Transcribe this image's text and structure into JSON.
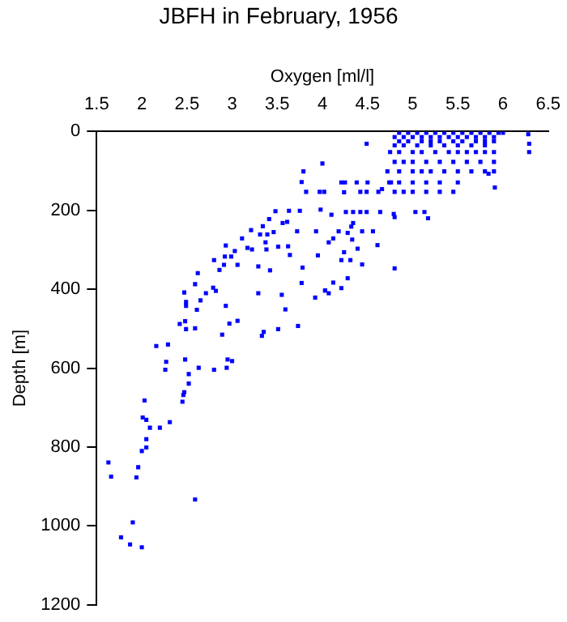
{
  "chart_data": {
    "type": "scatter",
    "title": "JBFH in February, 1956",
    "xlabel": "Oxygen [ml/l]",
    "ylabel": "Depth [m]",
    "x": [
      1.63,
      1.66,
      1.77,
      1.9,
      1.87,
      2.0,
      2.59,
      1.96,
      1.94,
      2.0,
      2.05,
      2.05,
      2.09,
      2.2,
      2.01,
      2.05,
      2.31,
      2.03,
      2.45,
      2.46,
      2.47,
      2.52,
      2.52,
      2.63,
      2.8,
      2.94,
      2.95,
      3.0,
      2.48,
      2.26,
      2.27,
      2.16,
      2.29,
      2.42,
      2.48,
      2.49,
      2.59,
      2.89,
      2.97,
      3.06,
      3.33,
      3.35,
      3.51,
      3.73,
      2.61,
      2.49,
      2.49,
      2.47,
      2.65,
      2.71,
      2.79,
      2.82,
      2.59,
      2.62,
      2.93,
      3.29,
      3.55,
      3.59,
      3.77,
      4.03,
      3.92,
      2.8,
      2.93,
      2.92,
      2.91,
      2.86,
      2.99,
      3.03,
      3.06,
      3.11,
      3.17,
      3.21,
      3.22,
      3.29,
      3.31,
      3.34,
      3.37,
      3.39,
      3.41,
      3.38,
      3.42,
      3.48,
      3.46,
      3.51,
      3.56,
      3.61,
      3.62,
      3.63,
      3.64,
      3.72,
      3.75,
      3.78,
      3.77,
      3.79,
      3.82,
      4.0,
      3.97,
      4.02,
      3.98,
      3.93,
      3.95,
      4.49,
      4.21,
      4.25,
      4.38,
      4.5,
      4.24,
      4.42,
      4.49,
      4.62,
      4.66,
      4.76,
      4.1,
      4.26,
      4.34,
      4.42,
      4.49,
      4.64,
      4.79,
      4.8,
      5.03,
      5.13,
      5.17,
      4.18,
      4.28,
      4.44,
      4.56,
      4.34,
      4.32,
      4.33,
      4.12,
      4.07,
      4.39,
      4.24,
      4.31,
      4.21,
      4.44,
      4.61,
      4.28,
      4.12,
      4.21,
      4.03,
      4.07,
      4.8,
      5.91,
      5.84,
      6.29,
      6.29,
      6.28,
      4.85,
      4.95,
      5.05,
      5.15,
      5.25,
      5.35,
      5.45,
      5.55,
      5.65,
      5.75,
      5.85,
      5.95,
      6.0,
      4.8,
      4.9,
      5.0,
      5.1,
      5.2,
      5.3,
      5.4,
      5.5,
      5.6,
      5.7,
      5.8,
      5.9,
      4.85,
      4.95,
      5.1,
      5.2,
      5.3,
      5.45,
      5.55,
      5.7,
      5.8,
      5.9,
      4.8,
      4.9,
      5.05,
      5.2,
      5.35,
      5.5,
      5.65,
      5.8,
      4.75,
      4.85,
      5.0,
      5.1,
      5.25,
      5.4,
      5.5,
      5.6,
      5.7,
      5.8,
      5.9,
      4.8,
      4.9,
      5.0,
      5.15,
      5.3,
      5.45,
      5.6,
      5.75,
      5.9,
      4.72,
      4.85,
      5.0,
      5.1,
      5.2,
      5.35,
      5.5,
      5.65,
      5.8,
      5.9,
      4.74,
      4.85,
      5.0,
      5.15,
      5.3,
      5.5,
      4.8,
      4.9,
      5.0,
      5.15,
      5.3,
      5.45
    ],
    "values": [
      839,
      875,
      1029,
      991,
      1047,
      1054,
      933,
      851,
      877,
      810,
      801,
      780,
      751,
      751,
      725,
      731,
      737,
      682,
      685,
      668,
      661,
      639,
      615,
      599,
      604,
      599,
      578,
      582,
      578,
      604,
      584,
      544,
      540,
      488,
      481,
      501,
      499,
      515,
      487,
      480,
      518,
      508,
      501,
      493,
      452,
      432,
      442,
      408,
      428,
      410,
      396,
      404,
      387,
      359,
      442,
      410,
      414,
      451,
      384,
      403,
      421,
      326,
      289,
      317,
      338,
      351,
      317,
      303,
      338,
      271,
      295,
      250,
      299,
      342,
      261,
      240,
      281,
      261,
      222,
      299,
      352,
      202,
      255,
      292,
      232,
      229,
      291,
      201,
      313,
      253,
      201,
      345,
      128,
      101,
      153,
      81,
      153,
      153,
      198,
      253,
      314,
      31,
      129,
      129,
      129,
      129,
      154,
      153,
      153,
      153,
      146,
      129,
      211,
      204,
      204,
      204,
      204,
      204,
      209,
      217,
      204,
      204,
      220,
      253,
      257,
      253,
      253,
      232,
      241,
      274,
      271,
      281,
      297,
      306,
      326,
      326,
      337,
      288,
      372,
      383,
      397,
      403,
      410,
      347,
      142,
      107,
      52,
      31,
      7,
      3,
      3,
      3,
      3,
      3,
      3,
      3,
      3,
      3,
      3,
      3,
      3,
      3,
      14,
      14,
      14,
      14,
      14,
      14,
      14,
      14,
      14,
      14,
      14,
      14,
      25,
      25,
      25,
      25,
      25,
      25,
      25,
      25,
      25,
      25,
      35,
      35,
      35,
      35,
      35,
      35,
      35,
      35,
      52,
      52,
      52,
      52,
      52,
      52,
      52,
      52,
      52,
      52,
      52,
      77,
      77,
      77,
      77,
      77,
      77,
      77,
      77,
      77,
      101,
      101,
      101,
      101,
      101,
      101,
      101,
      101,
      101,
      101,
      129,
      129,
      129,
      129,
      129,
      129,
      153,
      153,
      153,
      153,
      153,
      153
    ],
    "color": "#0000ff",
    "marker": "square",
    "xlim": [
      1.5,
      6.5
    ],
    "xticks": [
      1.5,
      2,
      2.5,
      3,
      3.5,
      4,
      4.5,
      5,
      5.5,
      6,
      6.5
    ],
    "ylim": [
      1200,
      0
    ],
    "yticks": [
      0,
      200,
      400,
      600,
      800,
      1000,
      1200
    ]
  }
}
